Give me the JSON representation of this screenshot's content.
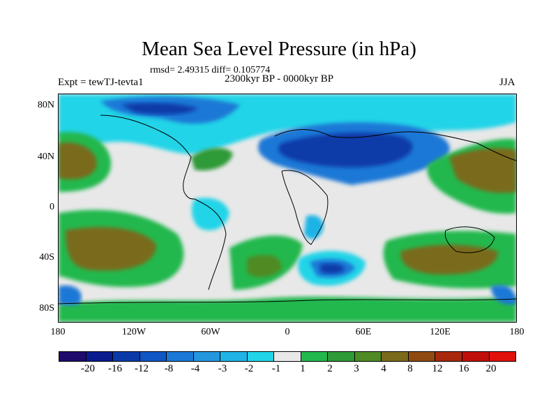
{
  "title": "Mean Sea Level Pressure (in hPa)",
  "stats": "rmsd= 2.49315 diff= 0.105774",
  "left_label": "Expt = tewTJ-tevta1",
  "center_label": "2300kyr BP - 0000kyr BP",
  "right_label": "JJA",
  "y_axis_labels": [
    "80N",
    "40N",
    "0",
    "40S",
    "80S"
  ],
  "x_axis_labels": [
    "180",
    "120W",
    "60W",
    "0",
    "60E",
    "120E",
    "180"
  ],
  "colorbar": {
    "labels": [
      "-20",
      "-16",
      "-12",
      "-8",
      "-4",
      "-3",
      "-2",
      "-1",
      "1",
      "2",
      "3",
      "4",
      "8",
      "12",
      "16",
      "20"
    ],
    "colors": [
      "#1e0b6b",
      "#0a1b8e",
      "#0b3aa8",
      "#1056c4",
      "#1b78d6",
      "#2496de",
      "#1fb3e6",
      "#22d4e8",
      "#e8e8e8",
      "#23b84e",
      "#2e9a38",
      "#4f8a24",
      "#7a6a1c",
      "#8f4a12",
      "#a8280e",
      "#c00f0a",
      "#e0100a"
    ]
  }
}
